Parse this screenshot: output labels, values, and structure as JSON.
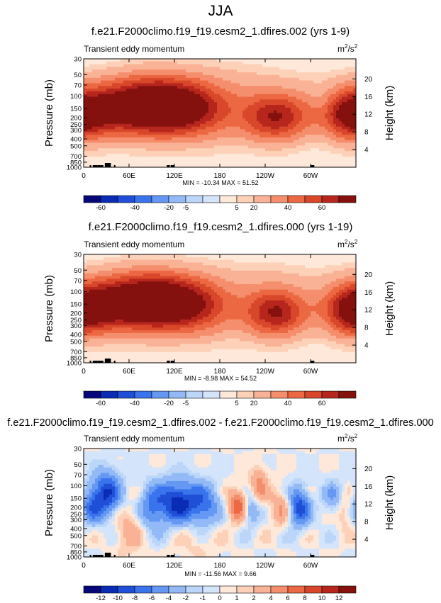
{
  "page": {
    "title": "JJA"
  },
  "colors": {
    "levels_main": [
      "#06087a",
      "#0a2cb4",
      "#1f4fd6",
      "#3a74ec",
      "#6598f3",
      "#93baf7",
      "#bcd6fa",
      "#d4e5fb",
      "#fde8da",
      "#fcd1b8",
      "#f9b295",
      "#f58e6c",
      "#ec6843",
      "#d9472a",
      "#b7261d",
      "#85110f"
    ],
    "levels_diff": [
      "#06087a",
      "#0a2cb4",
      "#1f4fd6",
      "#3a74ec",
      "#6598f3",
      "#93baf7",
      "#bcd6fa",
      "#d4e5fb",
      "#fde8da",
      "#fcd1b8",
      "#f9b295",
      "#f58e6c",
      "#ec6843",
      "#d9472a",
      "#b7261d",
      "#85110f"
    ]
  },
  "chart_data": [
    {
      "type": "heatmap",
      "title": "f.e21.F2000climo.f19_f19.cesm2_1.dfires.002 (yrs 1-9)",
      "subtitle_left": "Transient eddy momentum",
      "units_base": "m",
      "units_exp1": "2",
      "units_mid": "/s",
      "units_exp2": "2",
      "ylabel": "Pressure (mb)",
      "ylabel_right": "Height (km)",
      "xticks": [
        "0",
        "60E",
        "120E",
        "180",
        "120W",
        "60W"
      ],
      "xtick_values": [
        0,
        60,
        120,
        180,
        240,
        300
      ],
      "xlim": [
        0,
        360
      ],
      "yticks": [
        "30",
        "50",
        "70",
        "100",
        "150",
        "200",
        "250",
        "300",
        "400",
        "500",
        "700",
        "850",
        "1000"
      ],
      "ytick_values": [
        30,
        50,
        70,
        100,
        150,
        200,
        250,
        300,
        400,
        500,
        700,
        850,
        1000
      ],
      "ylim": [
        1000,
        30
      ],
      "yticks_right": [
        "20",
        "16",
        "12",
        "8",
        "4"
      ],
      "ytick_right_values": [
        20,
        16,
        12,
        8,
        4
      ],
      "stats": "MIN = -10.34  MAX = 51.52",
      "min": -10.34,
      "max": 51.52,
      "colorbar_labels": [
        "-60",
        "-40",
        "-20",
        "-5",
        "5",
        "20",
        "40",
        "60"
      ],
      "features": [
        {
          "lon": 30,
          "p": 150,
          "amp": 42,
          "wlon": 55,
          "wp": 0.6
        },
        {
          "lon": 90,
          "p": 130,
          "amp": 48,
          "wlon": 45,
          "wp": 0.7
        },
        {
          "lon": 130,
          "p": 150,
          "amp": 40,
          "wlon": 40,
          "wp": 0.6
        },
        {
          "lon": 255,
          "p": 200,
          "amp": 52,
          "wlon": 30,
          "wp": 0.55
        },
        {
          "lon": 355,
          "p": 200,
          "amp": 42,
          "wlon": 25,
          "wp": 0.55
        },
        {
          "lon": 180,
          "p": 200,
          "amp": 12,
          "wlon": 40,
          "wp": 0.7
        },
        {
          "lon": 200,
          "p": 80,
          "amp": 8,
          "wlon": 60,
          "wp": 0.8
        },
        {
          "lon": 315,
          "p": 110,
          "amp": -6,
          "wlon": 12,
          "wp": 0.4
        }
      ]
    },
    {
      "type": "heatmap",
      "title": "f.e21.F2000climo.f19_f19.cesm2_1.dfires.000 (yrs 1-19)",
      "subtitle_left": "Transient eddy momentum",
      "units_base": "m",
      "units_exp1": "2",
      "units_mid": "/s",
      "units_exp2": "2",
      "ylabel": "Pressure (mb)",
      "ylabel_right": "Height (km)",
      "xticks": [
        "0",
        "60E",
        "120E",
        "180",
        "120W",
        "60W"
      ],
      "xtick_values": [
        0,
        60,
        120,
        180,
        240,
        300
      ],
      "xlim": [
        0,
        360
      ],
      "yticks": [
        "30",
        "50",
        "70",
        "100",
        "150",
        "200",
        "250",
        "300",
        "400",
        "500",
        "700",
        "850",
        "1000"
      ],
      "ytick_values": [
        30,
        50,
        70,
        100,
        150,
        200,
        250,
        300,
        400,
        500,
        700,
        850,
        1000
      ],
      "ylim": [
        1000,
        30
      ],
      "yticks_right": [
        "20",
        "16",
        "12",
        "8",
        "4"
      ],
      "ytick_right_values": [
        20,
        16,
        12,
        8,
        4
      ],
      "stats": "MIN = -8.98  MAX = 54.52",
      "min": -8.98,
      "max": 54.52,
      "colorbar_labels": [
        "-60",
        "-40",
        "-20",
        "-5",
        "5",
        "20",
        "40",
        "60"
      ],
      "features": [
        {
          "lon": 35,
          "p": 150,
          "amp": 45,
          "wlon": 50,
          "wp": 0.6
        },
        {
          "lon": 85,
          "p": 130,
          "amp": 45,
          "wlon": 45,
          "wp": 0.7
        },
        {
          "lon": 130,
          "p": 150,
          "amp": 42,
          "wlon": 40,
          "wp": 0.6
        },
        {
          "lon": 255,
          "p": 200,
          "amp": 54,
          "wlon": 28,
          "wp": 0.55
        },
        {
          "lon": 355,
          "p": 200,
          "amp": 44,
          "wlon": 25,
          "wp": 0.55
        },
        {
          "lon": 175,
          "p": 200,
          "amp": 12,
          "wlon": 40,
          "wp": 0.7
        },
        {
          "lon": 230,
          "p": 80,
          "amp": 6,
          "wlon": 60,
          "wp": 0.8
        }
      ]
    },
    {
      "type": "heatmap",
      "title": "f.e21.F2000climo.f19_f19.cesm2_1.dfires.002 - f.e21.F2000climo.f19_f19.cesm2_1.dfires.000",
      "subtitle_left": "Transient eddy momentum",
      "units_base": "m",
      "units_exp1": "2",
      "units_mid": "/s",
      "units_exp2": "2",
      "ylabel": "Pressure (mb)",
      "ylabel_right": "Height (km)",
      "xticks": [
        "0",
        "60E",
        "120E",
        "180",
        "120W",
        "60W"
      ],
      "xtick_values": [
        0,
        60,
        120,
        180,
        240,
        300
      ],
      "xlim": [
        0,
        360
      ],
      "yticks": [
        "30",
        "50",
        "70",
        "100",
        "150",
        "200",
        "250",
        "300",
        "400",
        "500",
        "700",
        "850",
        "1000"
      ],
      "ytick_values": [
        30,
        50,
        70,
        100,
        150,
        200,
        250,
        300,
        400,
        500,
        700,
        850,
        1000
      ],
      "ylim": [
        1000,
        30
      ],
      "yticks_right": [
        "20",
        "16",
        "12",
        "8",
        "4"
      ],
      "ytick_right_values": [
        20,
        16,
        12,
        8,
        4
      ],
      "stats": "MIN = -11.56  MAX =  9.66",
      "min": -11.56,
      "max": 9.66,
      "colorbar_labels": [
        "-12",
        "-10",
        "-8",
        "-6",
        "-4",
        "-2",
        "-1",
        "0",
        "1",
        "2",
        "4",
        "6",
        "8",
        "10",
        "12"
      ],
      "features": [
        {
          "lon": 30,
          "p": 130,
          "amp": -10,
          "wlon": 14,
          "wp": 0.5
        },
        {
          "lon": 10,
          "p": 200,
          "amp": -5,
          "wlon": 10,
          "wp": 0.4
        },
        {
          "lon": 90,
          "p": 200,
          "amp": -6,
          "wlon": 12,
          "wp": 0.5
        },
        {
          "lon": 125,
          "p": 170,
          "amp": -11,
          "wlon": 18,
          "wp": 0.5
        },
        {
          "lon": 160,
          "p": 200,
          "amp": -7,
          "wlon": 14,
          "wp": 0.5
        },
        {
          "lon": 205,
          "p": 190,
          "amp": 8,
          "wlon": 10,
          "wp": 0.35
        },
        {
          "lon": 232,
          "p": 100,
          "amp": 5,
          "wlon": 8,
          "wp": 0.4
        },
        {
          "lon": 220,
          "p": 210,
          "amp": -6,
          "wlon": 8,
          "wp": 0.35
        },
        {
          "lon": 285,
          "p": 200,
          "amp": -9,
          "wlon": 10,
          "wp": 0.45
        },
        {
          "lon": 260,
          "p": 210,
          "amp": 4,
          "wlon": 10,
          "wp": 0.4
        },
        {
          "lon": 330,
          "p": 150,
          "amp": -4,
          "wlon": 10,
          "wp": 0.4
        },
        {
          "lon": 345,
          "p": 220,
          "amp": 3,
          "wlon": 8,
          "wp": 0.4
        },
        {
          "lon": 60,
          "p": 400,
          "amp": 3,
          "wlon": 14,
          "wp": 0.6
        },
        {
          "lon": 150,
          "p": 450,
          "amp": 2,
          "wlon": 20,
          "wp": 0.6
        }
      ]
    }
  ]
}
